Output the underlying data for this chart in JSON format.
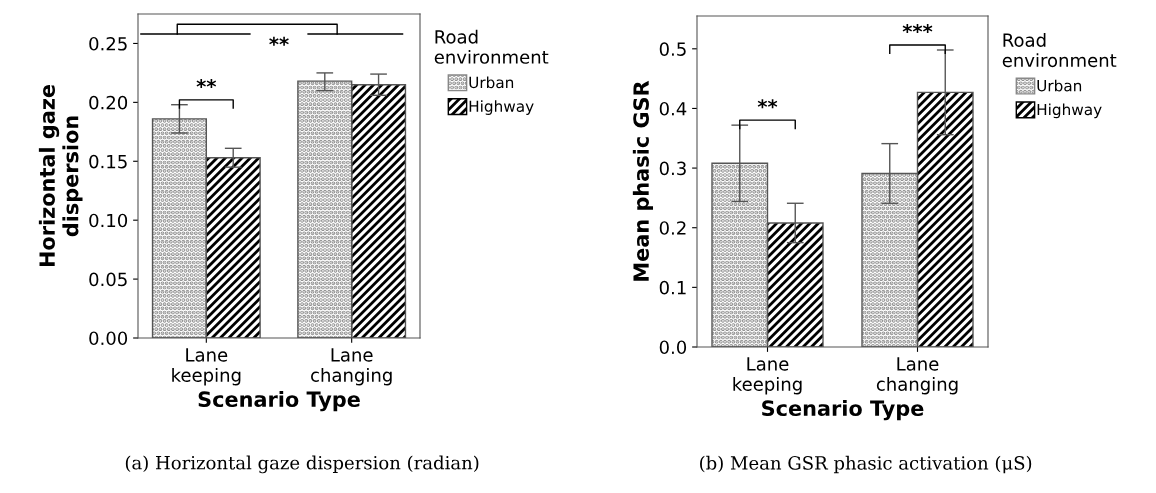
{
  "chart_data": [
    {
      "type": "bar",
      "xlabel": "Scenario Type",
      "ylabel": "Horizontal gaze\ndispersion",
      "legend_title": "Road\nenvironment",
      "legend": "right",
      "grid": false,
      "categories": [
        "Lane\nkeeping",
        "Lane\nchanging"
      ],
      "ylim": [
        0,
        0.275
      ],
      "yticks": [
        {
          "value": 0,
          "label": "0.00"
        },
        0.05,
        {
          "value": 0.1,
          "label": "0.10"
        },
        0.15,
        {
          "value": 0.2,
          "label": "0.20"
        },
        0.25
      ],
      "series": [
        {
          "name": "Urban",
          "color": "#ffffff",
          "values": [
            0.186,
            0.218
          ],
          "errors": [
            [
              0.174,
              0.198
            ],
            [
              0.21,
              0.225
            ]
          ]
        },
        {
          "name": "Highway",
          "color": "#000000",
          "values": [
            0.153,
            0.215
          ],
          "errors": [
            [
              0.145,
              0.161
            ],
            [
              0.206,
              0.224
            ]
          ]
        }
      ],
      "annotations": [
        "**",
        "**",
        "(a) Horizontal gaze dispersion (radian)"
      ]
    },
    {
      "type": "bar",
      "xlabel": "Scenario Type",
      "ylabel": "Mean phasic GSR",
      "legend_title": "Road\nenvironment",
      "legend": "right",
      "grid": false,
      "categories": [
        "Lane\nkeeping",
        "Lane\nchanging"
      ],
      "ylim": [
        0,
        0.555
      ],
      "yticks": [
        {
          "value": 0,
          "label": "0.0"
        },
        0.1,
        0.2,
        0.3,
        0.4,
        0.5
      ],
      "series": [
        {
          "name": "Urban",
          "color": "#ffffff",
          "values": [
            0.308,
            0.291
          ],
          "errors": [
            [
              0.244,
              0.372
            ],
            [
              0.241,
              0.341
            ]
          ]
        },
        {
          "name": "Highway",
          "color": "#000000",
          "values": [
            0.208,
            0.427
          ],
          "errors": [
            [
              0.175,
              0.241
            ],
            [
              0.356,
              0.498
            ]
          ]
        }
      ],
      "annotations": [
        "**",
        "***",
        "(b) Mean GSR phasic activation (μS)"
      ]
    }
  ]
}
